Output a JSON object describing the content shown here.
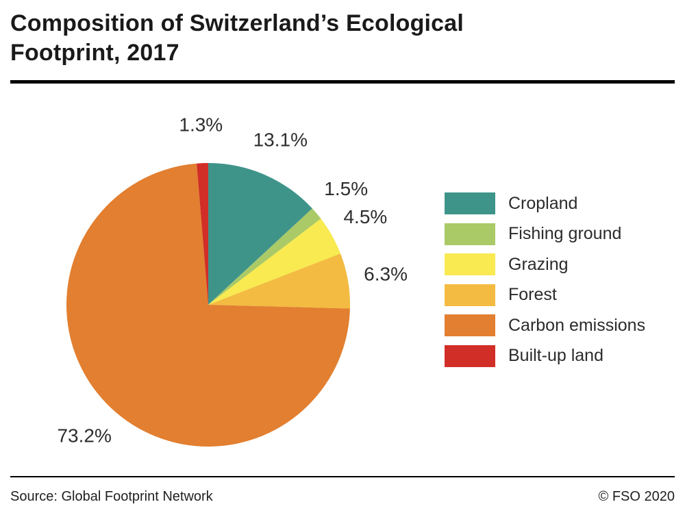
{
  "header": {
    "title_line1": "Composition of Switzerland’s Ecological",
    "title_line2": "Footprint, 2017"
  },
  "chart_data": {
    "type": "pie",
    "title": "Composition of Switzerland’s Ecological Footprint, 2017",
    "unit": "%",
    "direction": "clockwise",
    "start_angle_deg": 0,
    "legend_position": "right",
    "segments": [
      {
        "label": "Cropland",
        "value": 13.1,
        "display": "13.1%",
        "color": "#3f948a"
      },
      {
        "label": "Fishing ground",
        "value": 1.5,
        "display": "1.5%",
        "color": "#aac967"
      },
      {
        "label": "Grazing",
        "value": 4.5,
        "display": "4.5%",
        "color": "#f8ea50"
      },
      {
        "label": "Forest",
        "value": 6.3,
        "display": "6.3%",
        "color": "#f3bb41"
      },
      {
        "label": "Carbon emissions",
        "value": 73.2,
        "display": "73.2%",
        "color": "#e27f30"
      },
      {
        "label": "Built-up land",
        "value": 1.3,
        "display": "1.3%",
        "color": "#d12e27"
      }
    ]
  },
  "footer": {
    "source": "Source: Global Footprint Network",
    "copyright": "© FSO 2020"
  }
}
